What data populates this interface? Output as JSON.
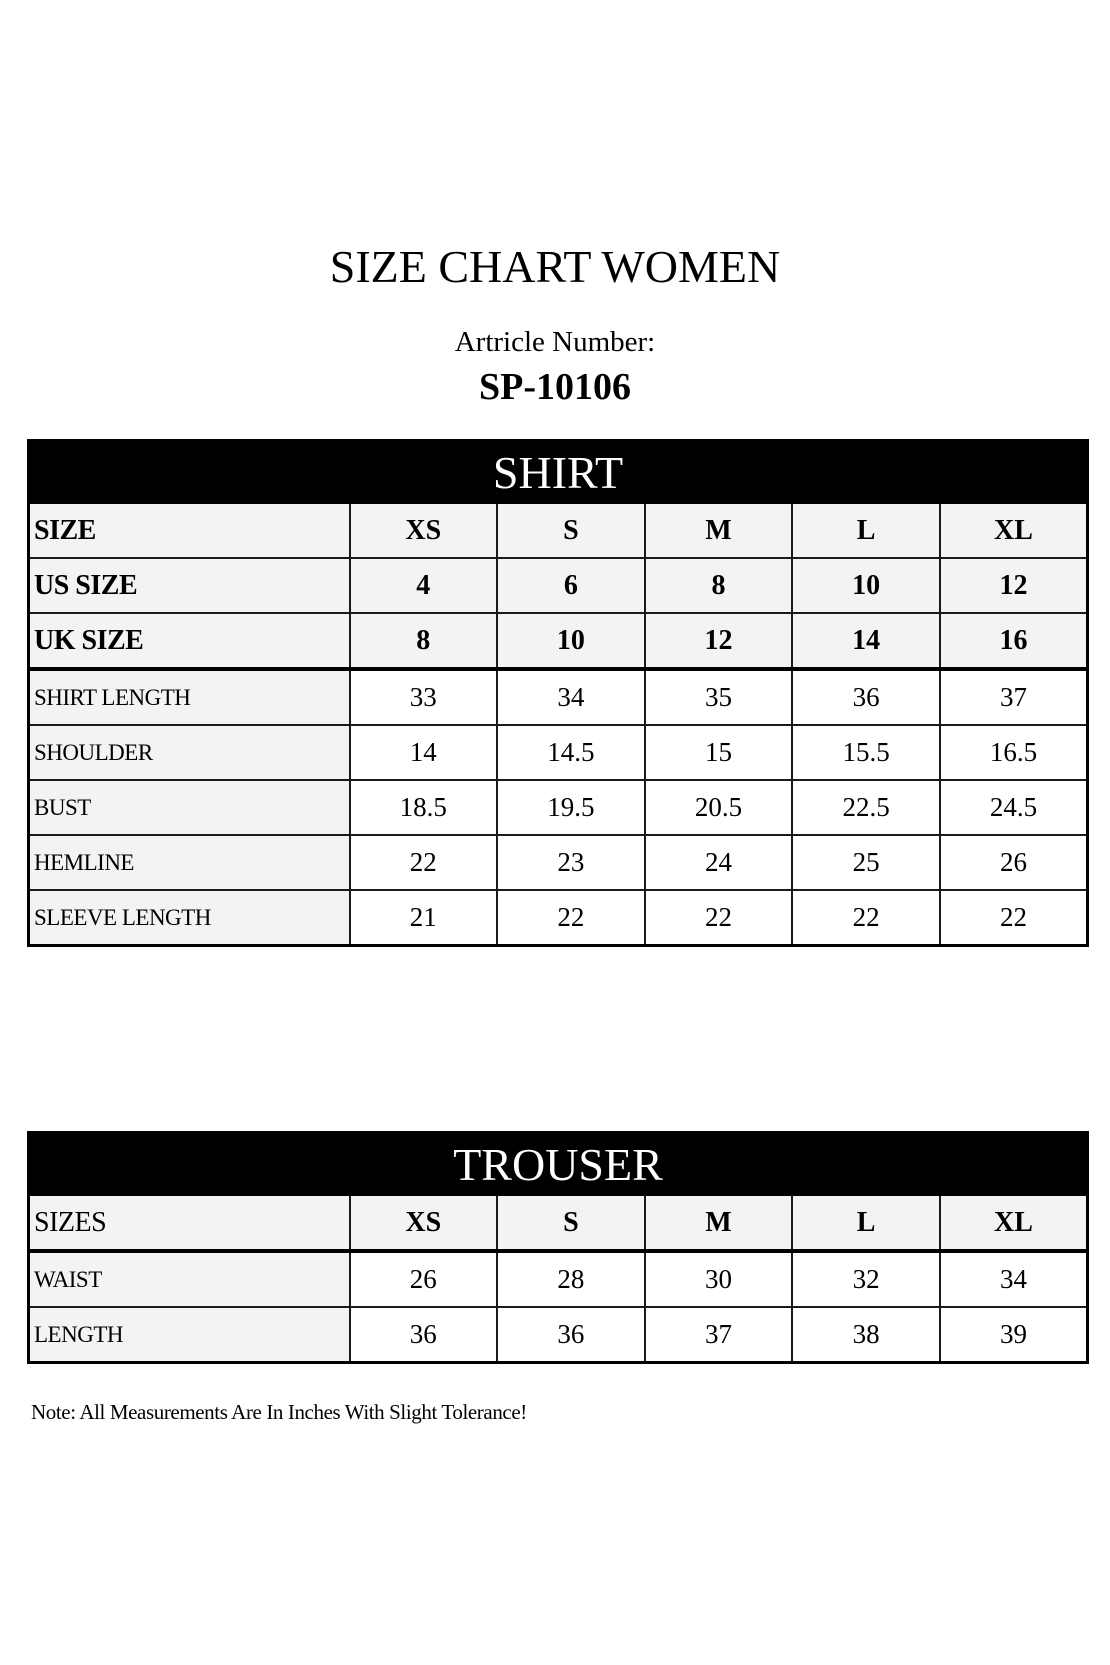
{
  "title": "SIZE CHART WOMEN",
  "article_label": "Artricle Number:",
  "article_number": "SP-10106",
  "shirt": {
    "heading": "SHIRT",
    "size_rows": [
      {
        "label": "SIZE",
        "values": [
          "XS",
          "S",
          "M",
          "L",
          "XL"
        ]
      },
      {
        "label": "US SIZE",
        "values": [
          "4",
          "6",
          "8",
          "10",
          "12"
        ]
      },
      {
        "label": "UK SIZE",
        "values": [
          "8",
          "10",
          "12",
          "14",
          "16"
        ]
      }
    ],
    "measure_rows": [
      {
        "label": "SHIRT LENGTH",
        "values": [
          "33",
          "34",
          "35",
          "36",
          "37"
        ]
      },
      {
        "label": "SHOULDER",
        "values": [
          "14",
          "14.5",
          "15",
          "15.5",
          "16.5"
        ]
      },
      {
        "label": "BUST",
        "values": [
          "18.5",
          "19.5",
          "20.5",
          "22.5",
          "24.5"
        ]
      },
      {
        "label": "HEMLINE",
        "values": [
          "22",
          "23",
          "24",
          "25",
          "26"
        ]
      },
      {
        "label": "SLEEVE LENGTH",
        "values": [
          "21",
          "22",
          "22",
          "22",
          "22"
        ]
      }
    ]
  },
  "trouser": {
    "heading": "TROUSER",
    "size_row": {
      "label": "SIZES",
      "values": [
        "XS",
        "S",
        "M",
        "L",
        "XL"
      ]
    },
    "measure_rows": [
      {
        "label": "WAIST",
        "values": [
          "26",
          "28",
          "30",
          "32",
          "34"
        ]
      },
      {
        "label": "LENGTH",
        "values": [
          "36",
          "36",
          "37",
          "38",
          "39"
        ]
      }
    ]
  },
  "note": "Note: All Measurements Are In Inches With Slight Tolerance!"
}
